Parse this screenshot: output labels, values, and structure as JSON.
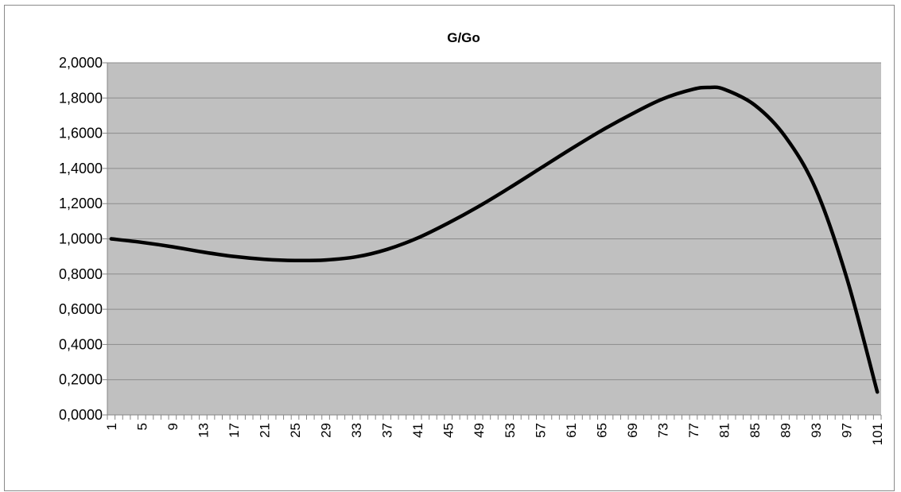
{
  "chart_data": {
    "type": "line",
    "title": "G/Go",
    "xlabel": "",
    "ylabel": "",
    "x_range": [
      1,
      101
    ],
    "ylim": [
      0,
      2
    ],
    "y_tick_values": [
      0,
      0.2,
      0.4,
      0.6,
      0.8,
      1.0,
      1.2,
      1.4,
      1.6,
      1.8,
      2.0
    ],
    "y_tick_labels": [
      "0,0000",
      "0,2000",
      "0,4000",
      "0,6000",
      "0,8000",
      "1,0000",
      "1,2000",
      "1,4000",
      "1,6000",
      "1,8000",
      "2,0000"
    ],
    "x_tick_labels": [
      "1",
      "5",
      "9",
      "13",
      "17",
      "21",
      "25",
      "29",
      "33",
      "37",
      "41",
      "45",
      "49",
      "53",
      "57",
      "61",
      "65",
      "69",
      "73",
      "77",
      "81",
      "85",
      "89",
      "93",
      "97",
      "101"
    ],
    "grid": "horizontal",
    "legend": "none",
    "colors": {
      "plot_background": "#c0c0c0",
      "line": "#000000",
      "gridline": "#8c8c8c"
    },
    "series": [
      {
        "x": [
          1,
          5,
          9,
          13,
          17,
          21,
          25,
          29,
          33,
          37,
          41,
          45,
          49,
          53,
          57,
          61,
          65,
          69,
          73,
          77,
          79,
          81,
          85,
          89,
          93,
          97,
          101
        ],
        "values": [
          1.0,
          0.98,
          0.955,
          0.925,
          0.9,
          0.884,
          0.877,
          0.88,
          0.898,
          0.94,
          1.005,
          1.09,
          1.185,
          1.29,
          1.4,
          1.51,
          1.615,
          1.71,
          1.795,
          1.85,
          1.86,
          1.85,
          1.76,
          1.58,
          1.28,
          0.78,
          0.13
        ]
      }
    ]
  }
}
